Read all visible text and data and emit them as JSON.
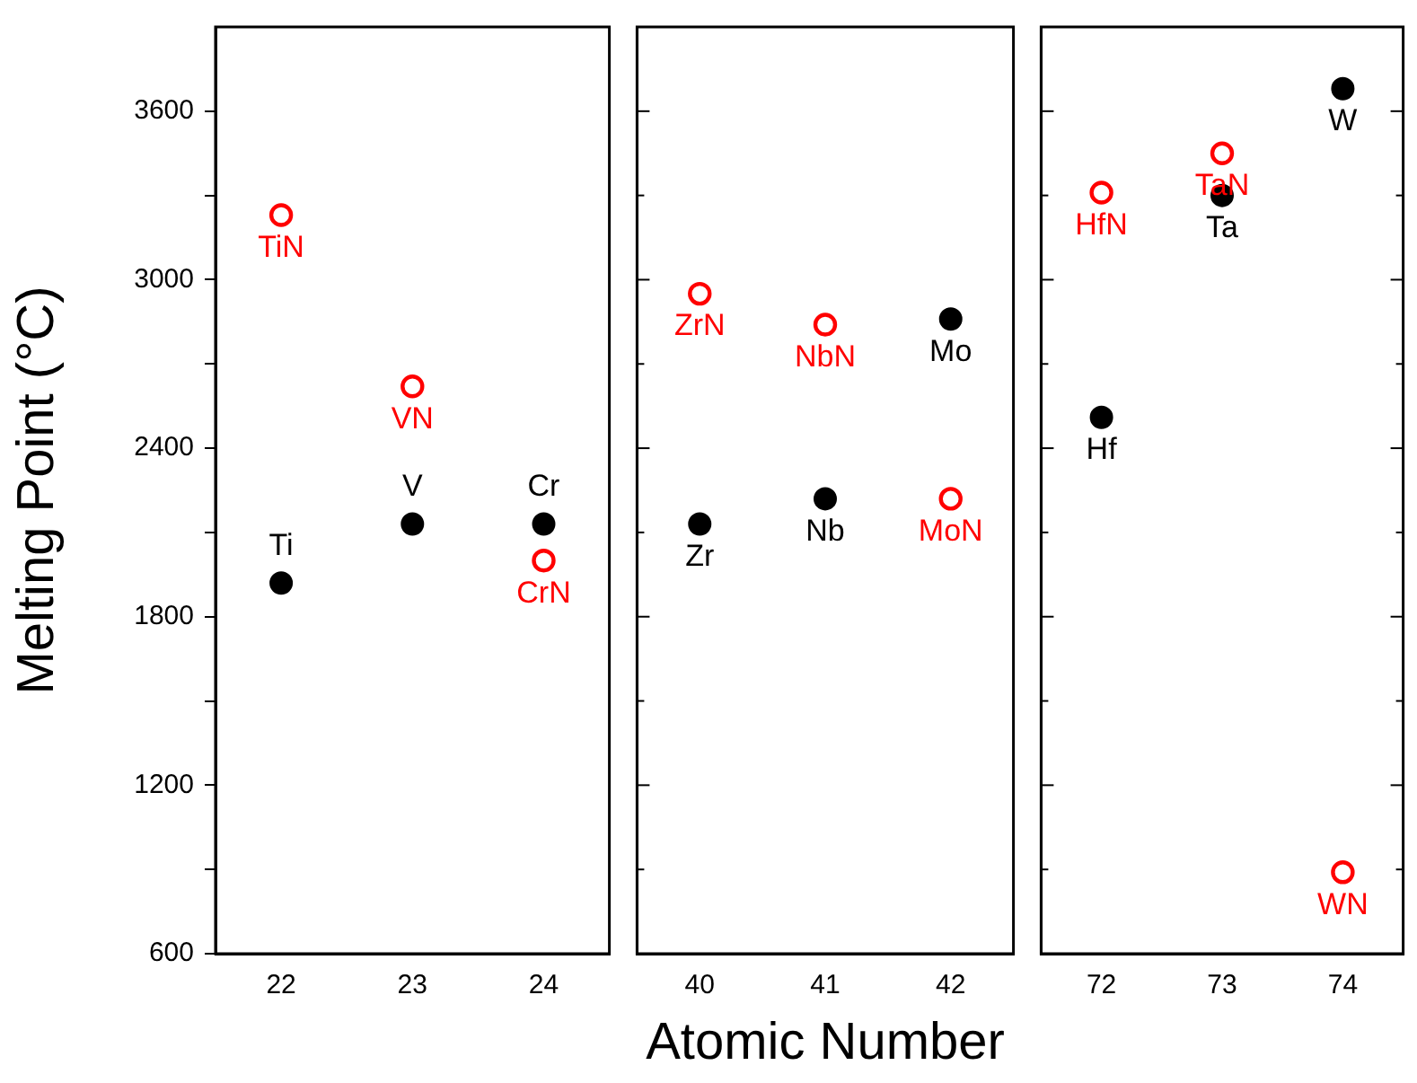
{
  "chart_data": [
    {
      "type": "scatter",
      "ylabel": "Melting Point (°C)",
      "categories": [
        "22",
        "23",
        "24"
      ],
      "ylim": [
        600,
        3900
      ],
      "yticks": [
        600,
        {
          "value": 900,
          "label": null
        },
        1200,
        {
          "value": 1500,
          "label": null
        },
        1800,
        {
          "value": 2100,
          "label": null
        },
        2400,
        {
          "value": 2700,
          "label": null
        },
        3000,
        {
          "value": 3300,
          "label": null
        },
        3600
      ],
      "marker": "circle",
      "grid": false,
      "series": [
        {
          "color": "#000000",
          "values": [
            1920,
            2130,
            2130
          ],
          "value_labels": [
            "Ti",
            "V",
            "Cr"
          ]
        },
        {
          "color": "#ff0000",
          "values": [
            3230,
            2620,
            2000
          ],
          "value_labels": [
            "TiN",
            "VN",
            "CrN"
          ]
        }
      ]
    },
    {
      "type": "scatter",
      "xlabel": "Atomic Number",
      "categories": [
        "40",
        "41",
        "42"
      ],
      "ylim": [
        600,
        3900
      ],
      "yticks": [
        600,
        {
          "value": 900,
          "label": null
        },
        1200,
        {
          "value": 1500,
          "label": null
        },
        1800,
        {
          "value": 2100,
          "label": null
        },
        2400,
        {
          "value": 2700,
          "label": null
        },
        3000,
        {
          "value": 3300,
          "label": null
        },
        3600
      ],
      "marker": "circle",
      "grid": false,
      "tick_labels": "x",
      "series": [
        {
          "color": "#000000",
          "values": [
            2130,
            2220,
            2860
          ],
          "value_labels": [
            "Zr",
            "Nb",
            "Mo"
          ]
        },
        {
          "color": "#ff0000",
          "values": [
            2950,
            2840,
            2220
          ],
          "value_labels": [
            "ZrN",
            "NbN",
            "MoN"
          ]
        }
      ]
    },
    {
      "type": "scatter",
      "categories": [
        "72",
        "73",
        "74"
      ],
      "ylim": [
        600,
        3900
      ],
      "yticks": [
        600,
        {
          "value": 900,
          "label": null
        },
        1200,
        {
          "value": 1500,
          "label": null
        },
        1800,
        {
          "value": 2100,
          "label": null
        },
        2400,
        {
          "value": 2700,
          "label": null
        },
        3000,
        {
          "value": 3300,
          "label": null
        },
        3600
      ],
      "marker": "circle",
      "grid": false,
      "tick_labels": "x",
      "series": [
        {
          "color": "#000000",
          "values": [
            2510,
            3300,
            3680
          ],
          "value_labels": [
            "Hf",
            "Ta",
            "W"
          ]
        },
        {
          "color": "#ff0000",
          "values": [
            3310,
            3450,
            890
          ],
          "value_labels": [
            "HfN",
            "TaN",
            "WN"
          ]
        }
      ]
    }
  ]
}
